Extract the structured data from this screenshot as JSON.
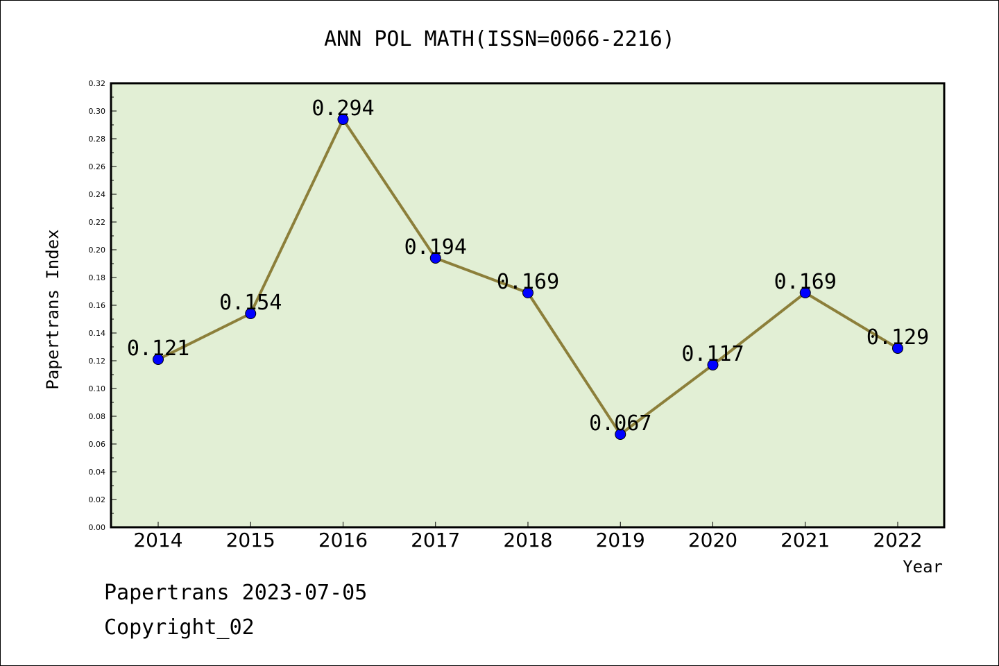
{
  "chart_data": {
    "type": "line",
    "title": "ANN POL MATH(ISSN=0066-2216)",
    "xlabel": "Year",
    "ylabel": "Papertrans Index",
    "categories": [
      "2014",
      "2015",
      "2016",
      "2017",
      "2018",
      "2019",
      "2020",
      "2021",
      "2022"
    ],
    "values": [
      0.121,
      0.154,
      0.294,
      0.194,
      0.169,
      0.067,
      0.117,
      0.169,
      0.129
    ],
    "data_labels": [
      "0.121",
      "0.154",
      "0.294",
      "0.194",
      "0.169",
      "0.067",
      "0.117",
      "0.169",
      "0.129"
    ],
    "ylim": [
      0,
      0.32
    ],
    "yticks": [
      "0.00",
      "0.02",
      "0.04",
      "0.06",
      "0.08",
      "0.10",
      "0.12",
      "0.14",
      "0.16",
      "0.18",
      "0.20",
      "0.22",
      "0.24",
      "0.26",
      "0.28",
      "0.30",
      "0.32"
    ],
    "grid": false,
    "colors": {
      "plot_background": "#e2efd5",
      "line": "#8c7f3a",
      "marker": "#0000ff"
    }
  },
  "footer": {
    "source": "Papertrans 2023-07-05",
    "copyright": "Copyright_02"
  }
}
